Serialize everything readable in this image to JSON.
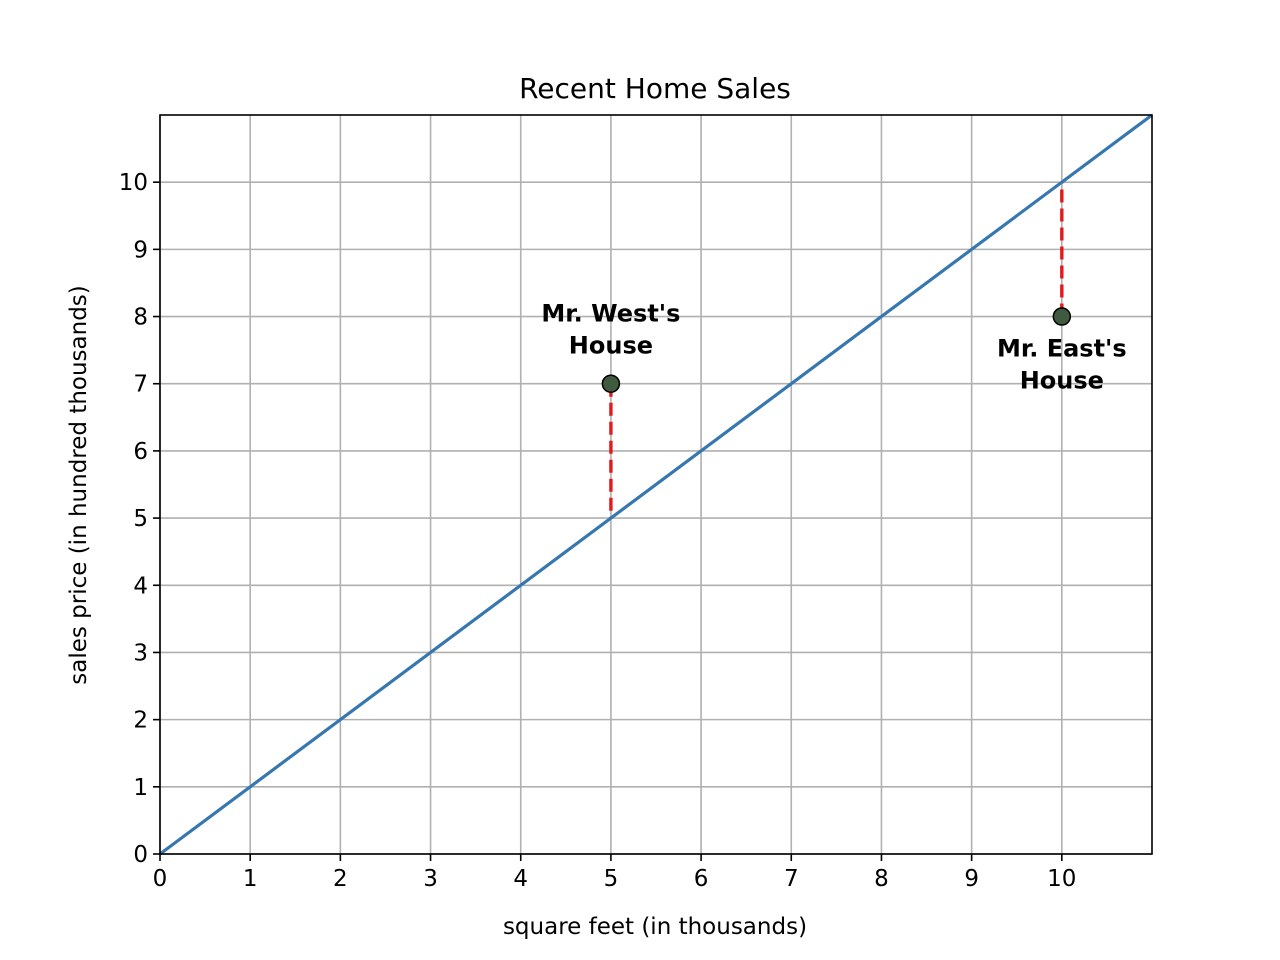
{
  "chart_data": {
    "type": "line",
    "title": "Recent Home Sales",
    "xlabel": "square feet (in thousands)",
    "ylabel": "sales price (in hundred thousands)",
    "xlim": [
      0,
      11
    ],
    "ylim": [
      0,
      11
    ],
    "x_ticks": [
      0,
      1,
      2,
      3,
      4,
      5,
      6,
      7,
      8,
      9,
      10
    ],
    "y_ticks": [
      0,
      1,
      2,
      3,
      4,
      5,
      6,
      7,
      8,
      9,
      10
    ],
    "grid": true,
    "series": [
      {
        "x": [
          0,
          11
        ],
        "y": [
          0,
          11
        ],
        "color": "#3777b0"
      }
    ],
    "points": [
      {
        "x": 5,
        "y": 7,
        "color": "#3f5a3f"
      },
      {
        "x": 10,
        "y": 8,
        "color": "#3f5a3f"
      }
    ],
    "residuals": [
      {
        "x": 5,
        "y_from": 7,
        "y_to": 5,
        "color": "#e31a1c"
      },
      {
        "x": 10,
        "y_from": 8,
        "y_to": 10,
        "color": "#e31a1c"
      }
    ],
    "annotations": [
      {
        "lines": [
          "Mr. West's",
          "House"
        ],
        "x": 5,
        "y": 7,
        "position": "above"
      },
      {
        "lines": [
          "Mr. East's",
          "House"
        ],
        "x": 10,
        "y": 8,
        "position": "below"
      }
    ]
  }
}
